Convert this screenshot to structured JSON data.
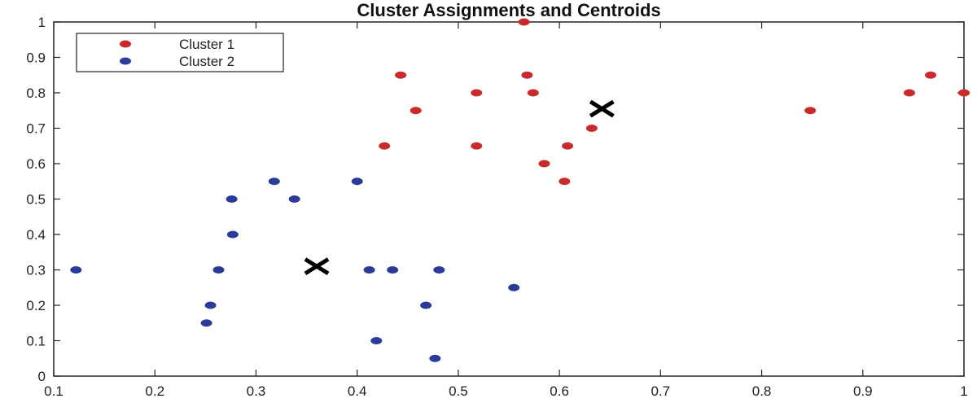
{
  "chart_data": {
    "type": "scatter",
    "title": "Cluster Assignments and Centroids",
    "xlabel": "",
    "ylabel": "",
    "xlim": [
      0.1,
      1.0
    ],
    "ylim": [
      0,
      1.0
    ],
    "xticks": [
      0.1,
      0.2,
      0.3,
      0.4,
      0.5,
      0.6,
      0.7,
      0.8,
      0.9,
      1
    ],
    "xtick_labels": [
      "0.1",
      "0.2",
      "0.3",
      "0.4",
      "0.5",
      "0.6",
      "0.7",
      "0.8",
      "0.9",
      "1"
    ],
    "yticks": [
      0,
      0.1,
      0.2,
      0.3,
      0.4,
      0.5,
      0.6,
      0.7,
      0.8,
      0.9,
      1
    ],
    "ytick_labels": [
      "0",
      "0.1",
      "0.2",
      "0.3",
      "0.4",
      "0.5",
      "0.6",
      "0.7",
      "0.8",
      "0.9",
      "1"
    ],
    "grid": false,
    "legend_position": "top-left",
    "series": [
      {
        "name": "Cluster 1",
        "color": "#cc2a2a",
        "points": [
          [
            0.565,
            1.0
          ],
          [
            0.443,
            0.85
          ],
          [
            0.568,
            0.85
          ],
          [
            0.518,
            0.8
          ],
          [
            0.574,
            0.8
          ],
          [
            0.458,
            0.75
          ],
          [
            0.632,
            0.7
          ],
          [
            0.427,
            0.65
          ],
          [
            0.518,
            0.65
          ],
          [
            0.608,
            0.65
          ],
          [
            0.585,
            0.6
          ],
          [
            0.605,
            0.55
          ],
          [
            0.848,
            0.75
          ],
          [
            0.946,
            0.8
          ],
          [
            0.967,
            0.85
          ],
          [
            1.0,
            0.8
          ]
        ]
      },
      {
        "name": "Cluster 2",
        "color": "#2b3b9c",
        "points": [
          [
            0.122,
            0.3
          ],
          [
            0.263,
            0.3
          ],
          [
            0.255,
            0.2
          ],
          [
            0.251,
            0.15
          ],
          [
            0.276,
            0.5
          ],
          [
            0.277,
            0.4
          ],
          [
            0.318,
            0.55
          ],
          [
            0.338,
            0.5
          ],
          [
            0.4,
            0.55
          ],
          [
            0.412,
            0.3
          ],
          [
            0.435,
            0.3
          ],
          [
            0.481,
            0.3
          ],
          [
            0.555,
            0.25
          ],
          [
            0.468,
            0.2
          ],
          [
            0.419,
            0.1
          ],
          [
            0.477,
            0.05
          ]
        ]
      }
    ],
    "centroids": {
      "color": "#000000",
      "marker": "x",
      "points": [
        [
          0.642,
          0.755
        ],
        [
          0.36,
          0.31
        ]
      ]
    }
  }
}
